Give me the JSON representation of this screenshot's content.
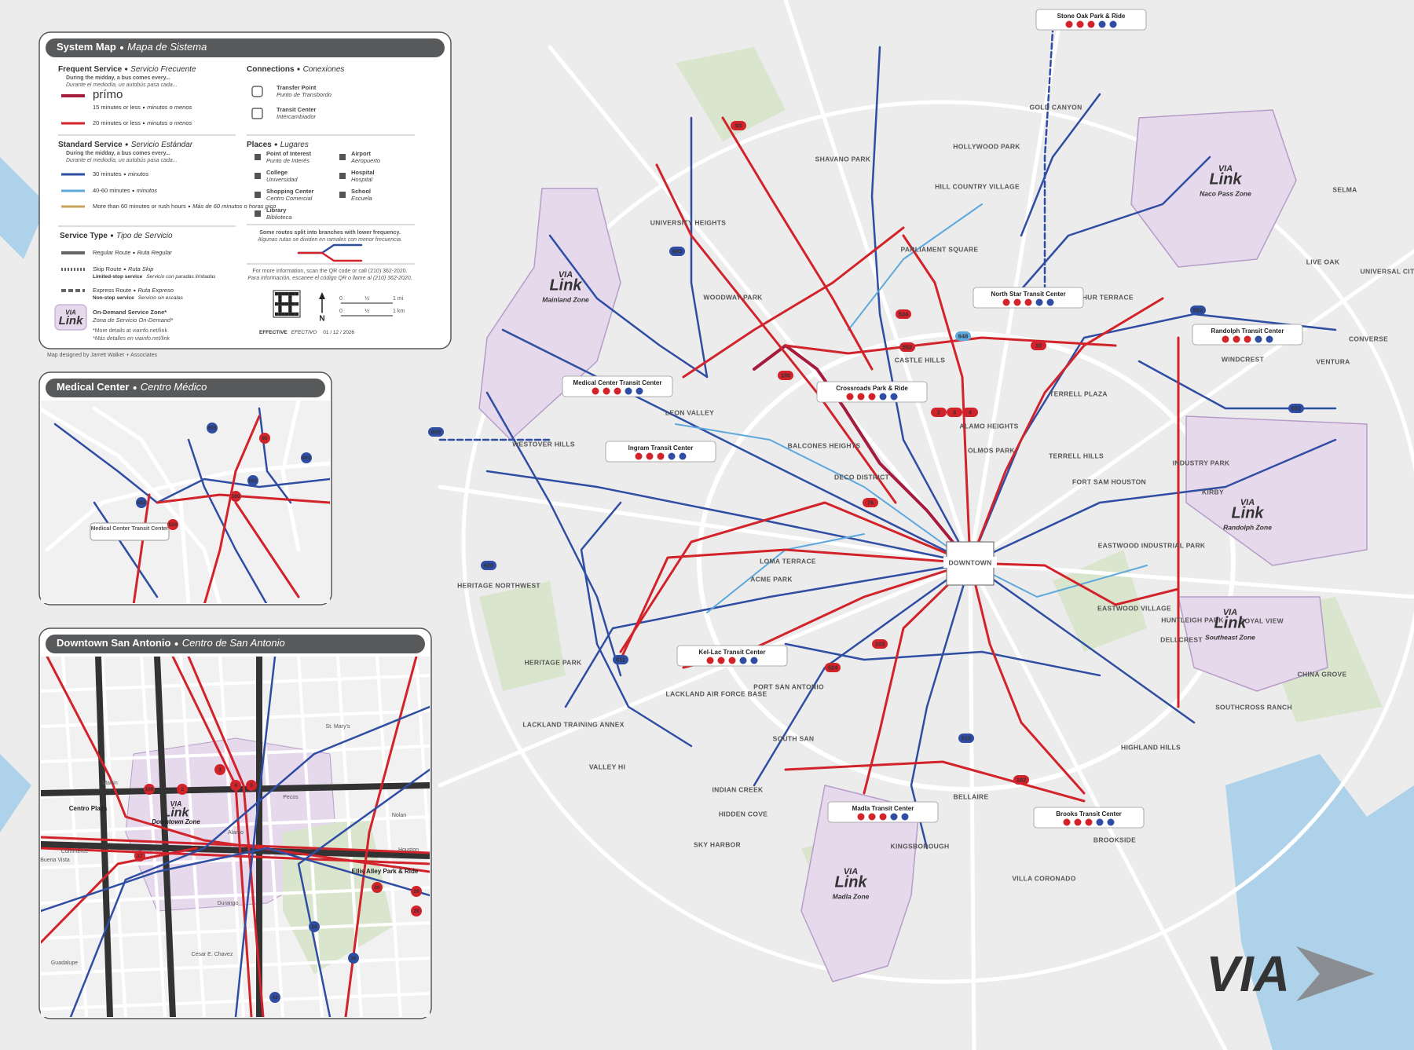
{
  "legend": {
    "title": {
      "en": "System Map",
      "es": "Mapa de Sistema"
    },
    "frequent": {
      "heading": {
        "en": "Frequent Service",
        "es": "Servicio Frecuente"
      },
      "note": "During the midday, a bus comes every...",
      "note_es": "Durante el mediodía, un autobús pasa cada...",
      "brand": "prímo",
      "items": [
        {
          "en": "15 minutes or less",
          "es": "minutos o menos"
        },
        {
          "en": "20 minutes or less",
          "es": "minutos o menos"
        }
      ]
    },
    "standard": {
      "heading": {
        "en": "Standard Service",
        "es": "Servicio Estándar"
      },
      "note": "During the midday, a bus comes every...",
      "note_es": "Durante el mediodía, un autobús pasa cada...",
      "items": [
        {
          "en": "30 minutes",
          "es": "minutos"
        },
        {
          "en": "40-60 minutes",
          "es": "minutos"
        },
        {
          "en": "More than 60 minutes or rush hours",
          "es": "Más de 60 minutos o horas pico"
        }
      ]
    },
    "service_type": {
      "heading": {
        "en": "Service Type",
        "es": "Tipo de Servicio"
      },
      "items": [
        {
          "en": "Regular Route",
          "es": "Ruta Regular"
        },
        {
          "en": "Skip Route",
          "es": "Ruta Skip",
          "note": "Limited-stop service",
          "note_es": "Servicio con paradas limitadas"
        },
        {
          "en": "Express Route",
          "es": "Ruta Expreso",
          "note": "Non-stop service",
          "note_es": "Servicio sin escalas"
        },
        {
          "en": "On-Demand Service Zone*",
          "es": "Zona de Servicio On-Demand*"
        }
      ],
      "footnote": "*More details at viainfo.net/link",
      "footnote_es": "*Más detalles en viainfo.net/link"
    },
    "connections": {
      "heading": {
        "en": "Connections",
        "es": "Conexiones"
      },
      "items": [
        {
          "en": "Transfer Point",
          "es": "Punto de Transbordo"
        },
        {
          "en": "Transit Center",
          "es": "Intercambiador"
        }
      ]
    },
    "places": {
      "heading": {
        "en": "Places",
        "es": "Lugares"
      },
      "items": [
        {
          "en": "Point of Interest",
          "es": "Punto de Interés"
        },
        {
          "en": "College",
          "es": "Universidad"
        },
        {
          "en": "Shopping Center",
          "es": "Centro Comercial"
        },
        {
          "en": "Library",
          "es": "Biblioteca"
        },
        {
          "en": "Airport",
          "es": "Aeropuerto"
        },
        {
          "en": "Hospital",
          "es": "Hospital"
        },
        {
          "en": "School",
          "es": "Escuela"
        }
      ]
    },
    "branch_note": "Some routes split into branches with lower frequency.",
    "branch_note_es": "Algunas rutas se dividen en ramales con menor frecuencia.",
    "info": "For more information, scan the QR code or call (210) 362-2020.",
    "info_es": "Para información, escanee el código QR o llame al (210) 362-2020.",
    "north": "N",
    "scale_mi": [
      "0",
      "½",
      "1 mi"
    ],
    "scale_km": [
      "0",
      "½",
      "1 km"
    ],
    "effective": {
      "en": "EFFECTIVE",
      "es": "EFECTIVO",
      "date": "01 / 12 / 2026"
    },
    "credit": "Map designed by Jarrett Walker + Associates"
  },
  "link_brand": {
    "via": "VIA",
    "link": "Link"
  },
  "places": [
    "DOWNTOWN",
    "ALAMO HEIGHTS",
    "CASTLE HILLS",
    "HOLLYWOOD PARK",
    "SHAVANO PARK",
    "HILL COUNTRY VILLAGE",
    "UNIVERSITY HEIGHTS",
    "WOODWAY PARK",
    "LEON VALLEY",
    "WESTOVER HILLS",
    "BALCONES HEIGHTS",
    "DECO DISTRICT",
    "LOMA TERRACE",
    "ACME PARK",
    "HERITAGE NORTHWEST",
    "HERITAGE PARK",
    "LACKLAND AIR FORCE BASE",
    "LACKLAND TRAINING ANNEX",
    "PORT SAN ANTONIO",
    "SOUTH SAN",
    "VALLEY HI",
    "INDIAN CREEK",
    "HIDDEN COVE",
    "SKY HARBOR",
    "BELLAIRE",
    "KINGSBOROUGH",
    "VILLA CORONADO",
    "BROOKSIDE",
    "HIGHLAND HILLS",
    "SOUTHCROSS RANCH",
    "CHINA GROVE",
    "HUNTLEIGH PARK",
    "DELLCREST",
    "EASTWOOD VILLAGE",
    "EASTWOOD INDUSTRIAL PARK",
    "FORT SAM HOUSTON",
    "KIRBY",
    "INDUSTRY PARK",
    "TERRELL HILLS",
    "TERRELL PLAZA",
    "OLMOS PARK",
    "MACARTHUR TERRACE",
    "PARLIAMENT SQUARE",
    "GOLD CANYON",
    "LIVE OAK",
    "UNIVERSAL CITY",
    "CONVERSE",
    "WINDCREST",
    "VENTURA",
    "SELMA",
    "ROYAL VIEW"
  ],
  "transit_centers": [
    "Medical Center Transit Center",
    "Ingram Transit Center",
    "Crossroads Park & Ride",
    "North Star Transit Center",
    "Randolph Transit Center",
    "Kel-Lac Transit Center",
    "Madla Transit Center",
    "Brooks Transit Center",
    "Stone Oak Park & Ride"
  ],
  "zones": [
    "Mainland Zone",
    "Naco Pass Zone",
    "Randolph Zone",
    "Southeast Zone",
    "Madla Zone"
  ],
  "routes": [
    {
      "label": "100",
      "color": "#d2232a"
    },
    {
      "label": "2",
      "color": "#d2232a"
    },
    {
      "label": "3",
      "color": "#d2232a"
    },
    {
      "label": "4",
      "color": "#d2232a"
    },
    {
      "label": "534",
      "color": "#d2232a"
    },
    {
      "label": "552",
      "color": "#d2232a"
    },
    {
      "label": "93",
      "color": "#d2232a"
    },
    {
      "label": "103",
      "color": "#d2232a"
    },
    {
      "label": "102",
      "color": "#d2232a"
    },
    {
      "label": "76",
      "color": "#d2232a"
    },
    {
      "label": "524",
      "color": "#d2232a"
    },
    {
      "label": "10",
      "color": "#d2232a"
    },
    {
      "label": "502",
      "color": "#2f4ea3"
    },
    {
      "label": "603",
      "color": "#2f4ea3"
    },
    {
      "label": "609",
      "color": "#2f4ea3"
    },
    {
      "label": "611",
      "color": "#2f4ea3"
    },
    {
      "label": "620",
      "color": "#2f4ea3"
    },
    {
      "label": "515",
      "color": "#2f4ea3"
    },
    {
      "label": "632",
      "color": "#2f4ea3"
    },
    {
      "label": "648",
      "color": "#5fa8dc"
    }
  ],
  "insets": {
    "medical": {
      "title": {
        "en": "Medical Center",
        "es": "Centro Médico"
      },
      "labels": [
        "Medical Center Transit Center"
      ],
      "routes": [
        "100",
        "534",
        "95",
        "609",
        "603",
        "602",
        "501"
      ]
    },
    "downtown": {
      "title": {
        "en": "Downtown San Antonio",
        "es": "Centro de San Antonio"
      },
      "labels": [
        "Downtown Zone",
        "Centro Plaza",
        "Ellis Alley Park & Ride",
        "Martin",
        "Commerce",
        "Houston",
        "Nolan",
        "Guadalupe",
        "Buena Vista",
        "Durango",
        "Cesar E. Chavez",
        "Alamo",
        "St. Mary's",
        "Pecos"
      ],
      "routes": [
        "100",
        "2",
        "3",
        "4",
        "5",
        "17",
        "20",
        "29",
        "28",
        "24",
        "36",
        "42"
      ]
    }
  },
  "logo": "VIA"
}
